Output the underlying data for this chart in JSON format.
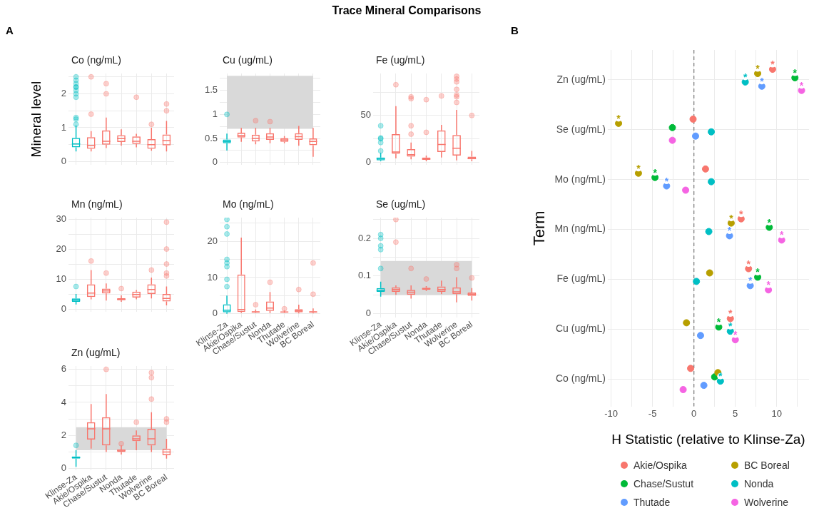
{
  "chart_data": [
    {
      "type": "box",
      "title": "Co (ng/mL)",
      "ylabel": "Mineral level",
      "annotations": [
        "Trace Mineral Comparisons",
        "A"
      ],
      "categories": [
        null,
        null,
        null,
        null,
        null,
        null,
        null
      ],
      "colors": [
        "#00bfc4",
        "#f8766d",
        "#f8766d",
        "#f8766d",
        "#f8766d",
        "#f8766d",
        "#f8766d"
      ],
      "boxes": [
        {
          "low": 0.3,
          "q1": 0.42,
          "median": 0.52,
          "q3": 0.7,
          "high": 1.07,
          "outliers": [
            2.5,
            2.4,
            2.3,
            2.2,
            2.2,
            2.1,
            2.0,
            1.9,
            1.3,
            1.25,
            1.1
          ]
        },
        {
          "low": 0.3,
          "q1": 0.38,
          "median": 0.48,
          "q3": 0.72,
          "high": 0.9,
          "outliers": [
            2.5,
            1.4
          ]
        },
        {
          "low": 0.4,
          "q1": 0.5,
          "median": 0.6,
          "q3": 0.92,
          "high": 1.3,
          "outliers": [
            2.3,
            2.0
          ]
        },
        {
          "low": 0.47,
          "q1": 0.58,
          "median": 0.68,
          "q3": 0.78,
          "high": 0.95
        },
        {
          "low": 0.42,
          "q1": 0.52,
          "median": 0.6,
          "q3": 0.74,
          "high": 0.82,
          "outliers": [
            1.9
          ]
        },
        {
          "low": 0.32,
          "q1": 0.38,
          "median": 0.5,
          "q3": 0.66,
          "high": 1.0,
          "outliers": [
            1.1
          ]
        },
        {
          "low": 0.3,
          "q1": 0.48,
          "median": 0.62,
          "q3": 0.8,
          "high": 1.2,
          "outliers": [
            1.7,
            1.5
          ]
        }
      ],
      "ylim": [
        -0.1,
        2.6
      ],
      "yticks": [
        0,
        {
          "value": 0.5,
          "label": null
        },
        1,
        {
          "value": 1.5,
          "label": null
        },
        2,
        {
          "value": 2.5,
          "label": null
        }
      ],
      "grid": true,
      "tick_labels": "y"
    },
    {
      "type": "box",
      "title": "Cu (ug/mL)",
      "categories": [
        null,
        null,
        null,
        null,
        null,
        null,
        null
      ],
      "colors": [
        "#00bfc4",
        "#f8766d",
        "#f8766d",
        "#f8766d",
        "#f8766d",
        "#f8766d",
        "#f8766d"
      ],
      "boxes": [
        {
          "low": 0.25,
          "q1": 0.4,
          "median": 0.44,
          "q3": 0.48,
          "high": 0.6,
          "outliers": [
            1.0
          ]
        },
        {
          "low": 0.43,
          "q1": 0.52,
          "median": 0.56,
          "q3": 0.62,
          "high": 0.72
        },
        {
          "low": 0.38,
          "q1": 0.44,
          "median": 0.5,
          "q3": 0.58,
          "high": 0.72,
          "outliers": [
            0.87
          ]
        },
        {
          "low": 0.4,
          "q1": 0.47,
          "median": 0.53,
          "q3": 0.61,
          "high": 0.72,
          "outliers": [
            0.85
          ]
        },
        {
          "low": 0.4,
          "q1": 0.43,
          "median": 0.47,
          "q3": 0.51,
          "high": 0.55
        },
        {
          "low": 0.35,
          "q1": 0.47,
          "median": 0.54,
          "q3": 0.61,
          "high": 0.76
        },
        {
          "low": 0.12,
          "q1": 0.36,
          "median": 0.44,
          "q3": 0.5,
          "high": 0.72
        }
      ],
      "bands": [
        {
          "axis": "y",
          "from": 0.7,
          "to": 1.8,
          "color": "#d9d9d9"
        }
      ],
      "ylim": [
        -0.05,
        1.85
      ],
      "yticks": [
        0,
        {
          "value": 0.25,
          "label": null
        },
        0.5,
        {
          "value": 0.75,
          "label": null
        },
        1,
        {
          "value": 1.25,
          "label": null
        },
        1.5,
        {
          "value": 1.75,
          "label": null
        }
      ],
      "grid": true,
      "tick_labels": "y"
    },
    {
      "type": "box",
      "title": "Fe (ug/mL)",
      "categories": [
        null,
        null,
        null,
        null,
        null,
        null,
        null
      ],
      "colors": [
        "#00bfc4",
        "#f8766d",
        "#f8766d",
        "#f8766d",
        "#f8766d",
        "#f8766d",
        "#f8766d"
      ],
      "boxes": [
        {
          "low": 1,
          "q1": 2,
          "median": 4,
          "q3": 5,
          "high": 10,
          "outliers": [
            39,
            26,
            25,
            21,
            12
          ]
        },
        {
          "low": 4,
          "q1": 9,
          "median": 11,
          "q3": 30,
          "high": 60,
          "outliers": [
            83
          ]
        },
        {
          "low": 3,
          "q1": 6,
          "median": 8,
          "q3": 14,
          "high": 21,
          "outliers": [
            70,
            68,
            39,
            30
          ]
        },
        {
          "low": 1,
          "q1": 2.5,
          "median": 3.5,
          "q3": 5,
          "high": 7,
          "outliers": [
            67,
            32
          ]
        },
        {
          "low": 5,
          "q1": 11,
          "median": 19,
          "q3": 34,
          "high": 40,
          "outliers": [
            71
          ]
        },
        {
          "low": 2,
          "q1": 7,
          "median": 15,
          "q3": 29,
          "high": 56,
          "outliers": [
            92,
            89,
            86,
            78,
            72,
            70,
            64
          ]
        },
        {
          "low": 1,
          "q1": 3,
          "median": 4,
          "q3": 6,
          "high": 12,
          "outliers": [
            50
          ]
        }
      ],
      "ylim": [
        -3,
        95
      ],
      "yticks": [
        0,
        {
          "value": 25,
          "label": null
        },
        50,
        {
          "value": 75,
          "label": null
        }
      ],
      "grid": true,
      "tick_labels": "y"
    },
    {
      "type": "box",
      "title": "Mn (ng/mL)",
      "categories": [
        null,
        null,
        null,
        null,
        null,
        null,
        null
      ],
      "colors": [
        "#00bfc4",
        "#f8766d",
        "#f8766d",
        "#f8766d",
        "#f8766d",
        "#f8766d",
        "#f8766d"
      ],
      "boxes": [
        {
          "low": 1.5,
          "q1": 2.4,
          "median": 3,
          "q3": 3.5,
          "high": 5,
          "outliers": [
            7.5
          ]
        },
        {
          "low": 3.2,
          "q1": 4,
          "median": 5.3,
          "q3": 8.2,
          "high": 13,
          "outliers": [
            16
          ]
        },
        {
          "low": 2.8,
          "q1": 5.2,
          "median": 6,
          "q3": 6.8,
          "high": 8.5,
          "outliers": [
            12
          ]
        },
        {
          "low": 2.4,
          "q1": 2.9,
          "median": 3.2,
          "q3": 3.6,
          "high": 4.5,
          "outliers": [
            6.8
          ]
        },
        {
          "low": 3.2,
          "q1": 3.8,
          "median": 4.8,
          "q3": 5.8,
          "high": 6.3
        },
        {
          "low": 3.5,
          "q1": 5,
          "median": 6.5,
          "q3": 8.2,
          "high": 10.5,
          "outliers": [
            13
          ]
        },
        {
          "low": 1.2,
          "q1": 2.5,
          "median": 3.5,
          "q3": 5,
          "high": 7.5,
          "outliers": [
            29,
            20,
            15,
            12,
            11
          ]
        }
      ],
      "ylim": [
        -1,
        30.5
      ],
      "yticks": [
        0,
        {
          "value": 5,
          "label": null
        },
        10,
        {
          "value": 15,
          "label": null
        },
        20,
        {
          "value": 25,
          "label": null
        },
        30
      ],
      "grid": true,
      "tick_labels": "y"
    },
    {
      "type": "box",
      "title": "Mo (ng/mL)",
      "categories": [
        "Klinse-Za",
        "Akie/Ospika",
        "Chase/Sustut",
        "Nonda",
        "Thutade",
        "Wolverine",
        "BC Boreal"
      ],
      "colors": [
        "#00bfc4",
        "#f8766d",
        "#f8766d",
        "#f8766d",
        "#f8766d",
        "#f8766d",
        "#f8766d"
      ],
      "boxes": [
        {
          "low": 0,
          "q1": 0.4,
          "median": 1,
          "q3": 2.6,
          "high": 5,
          "outliers": [
            26,
            24,
            22,
            15,
            14,
            13,
            9.5,
            7.5
          ]
        },
        {
          "low": 0.2,
          "q1": 0.5,
          "median": 1.2,
          "q3": 10.8,
          "high": 21
        },
        {
          "low": 0.2,
          "q1": 0.3,
          "median": 0.5,
          "q3": 0.7,
          "high": 1.2,
          "outliers": [
            2.5
          ]
        },
        {
          "low": 0.2,
          "q1": 0.8,
          "median": 1.6,
          "q3": 3.4,
          "high": 6,
          "outliers": [
            8.7
          ]
        },
        {
          "low": 0.2,
          "q1": 0.3,
          "median": 0.5,
          "q3": 0.6,
          "high": 0.9,
          "outliers": [
            1.4
          ]
        },
        {
          "low": 0.1,
          "q1": 0.4,
          "median": 0.8,
          "q3": 1.3,
          "high": 2.5,
          "outliers": [
            6.7
          ]
        },
        {
          "low": 0.1,
          "q1": 0.3,
          "median": 0.5,
          "q3": 0.7,
          "high": 1.5,
          "outliers": [
            14,
            5.4
          ]
        }
      ],
      "ylim": [
        -1,
        26.5
      ],
      "yticks": [
        0,
        {
          "value": 5,
          "label": null
        },
        10,
        {
          "value": 15,
          "label": null
        },
        20,
        {
          "value": 25,
          "label": null
        }
      ],
      "grid": true
    },
    {
      "type": "box",
      "title": "Se (ug/mL)",
      "categories": [
        "Klinse-Za",
        "Akie/Ospika",
        "Chase/Sustut",
        "Nonda",
        "Thutade",
        "Wolverine",
        "BC Boreal"
      ],
      "colors": [
        "#00bfc4",
        "#f8766d",
        "#f8766d",
        "#f8766d",
        "#f8766d",
        "#f8766d",
        "#f8766d"
      ],
      "boxes": [
        {
          "low": 0.045,
          "q1": 0.058,
          "median": 0.062,
          "q3": 0.068,
          "high": 0.085,
          "outliers": [
            0.21,
            0.2,
            0.18,
            0.17,
            0.12
          ]
        },
        {
          "low": 0.05,
          "q1": 0.058,
          "median": 0.064,
          "q3": 0.07,
          "high": 0.075,
          "outliers": [
            0.25,
            0.19
          ]
        },
        {
          "low": 0.04,
          "q1": 0.05,
          "median": 0.057,
          "q3": 0.063,
          "high": 0.075,
          "outliers": [
            0.12
          ]
        },
        {
          "low": 0.06,
          "q1": 0.063,
          "median": 0.066,
          "q3": 0.069,
          "high": 0.073,
          "outliers": [
            0.092
          ]
        },
        {
          "low": 0.052,
          "q1": 0.058,
          "median": 0.064,
          "q3": 0.072,
          "high": 0.088
        },
        {
          "low": 0.03,
          "q1": 0.052,
          "median": 0.058,
          "q3": 0.07,
          "high": 0.097,
          "outliers": [
            0.13,
            0.12
          ]
        },
        {
          "low": 0.035,
          "q1": 0.047,
          "median": 0.052,
          "q3": 0.056,
          "high": 0.068,
          "outliers": [
            0.095
          ]
        }
      ],
      "bands": [
        {
          "axis": "y",
          "from": 0.05,
          "to": 0.14,
          "color": "#d9d9d9"
        }
      ],
      "ylim": [
        -0.01,
        0.255
      ],
      "yticks": [
        0,
        {
          "value": 0.05,
          "label": null
        },
        0.1,
        {
          "value": 0.15,
          "label": null
        },
        0.2,
        {
          "value": 0.25,
          "label": null
        }
      ],
      "grid": true
    },
    {
      "type": "box",
      "title": "Zn (ug/mL)",
      "categories": [
        "Klinse-Za",
        "Akie/Ospika",
        "Chase/Sustut",
        "Nonda",
        "Thutade",
        "Wolverine",
        "BC Boreal"
      ],
      "colors": [
        "#00bfc4",
        "#f8766d",
        "#f8766d",
        "#f8766d",
        "#f8766d",
        "#f8766d",
        "#f8766d"
      ],
      "boxes": [
        {
          "low": 0.1,
          "q1": 0.6,
          "median": 0.66,
          "q3": 0.73,
          "high": 1.1,
          "outliers": [
            1.4
          ]
        },
        {
          "low": 1.2,
          "q1": 1.75,
          "median": 2.4,
          "q3": 2.8,
          "high": 3.9
        },
        {
          "low": 1.0,
          "q1": 1.4,
          "median": 2.4,
          "q3": 3.1,
          "high": 4.5,
          "outliers": [
            6
          ]
        },
        {
          "low": 0.85,
          "q1": 1.0,
          "median": 1.1,
          "q3": 1.15,
          "high": 1.4,
          "outliers": [
            1.5
          ]
        },
        {
          "low": 1.1,
          "q1": 1.65,
          "median": 1.8,
          "q3": 2.0,
          "high": 2.3,
          "outliers": [
            2.8
          ]
        },
        {
          "low": 1.0,
          "q1": 1.4,
          "median": 1.8,
          "q3": 2.4,
          "high": 3.4,
          "outliers": [
            5.8,
            5.5,
            4.2
          ]
        },
        {
          "low": 0.6,
          "q1": 0.8,
          "median": 1.0,
          "q3": 1.2,
          "high": 1.8,
          "outliers": [
            3.0,
            2.8
          ]
        }
      ],
      "bands": [
        {
          "axis": "y",
          "from": 1.1,
          "to": 2.5,
          "color": "#d9d9d9"
        }
      ],
      "ylim": [
        -0.1,
        6.2
      ],
      "yticks": [
        0,
        {
          "value": 1,
          "label": null
        },
        2,
        {
          "value": 3,
          "label": null
        },
        4,
        {
          "value": 5,
          "label": null
        },
        6
      ],
      "grid": true
    },
    {
      "type": "scatter",
      "orientation": "horizontal",
      "annotations": [
        "B"
      ],
      "xlabel": "H Statistic (relative to Klinse-Za)",
      "ylabel": "Term",
      "categories": [
        "Zn (ug/mL)",
        "Se (ug/mL)",
        "Mo (ng/mL)",
        "Mn (ng/mL)",
        "Fe (ug/mL)",
        "Cu (ug/mL)",
        "Co (ng/mL)"
      ],
      "series": [
        {
          "name": "Akie/Ospika",
          "color": "#f8766d",
          "values": [
            9.5,
            -0.1,
            1.4,
            5.7,
            6.6,
            4.4,
            -0.4
          ],
          "value_labels": [
            "*",
            null,
            null,
            "*",
            "*",
            "*",
            null
          ]
        },
        {
          "name": "BC Boreal",
          "color": "#b79f00",
          "values": [
            7.7,
            -9.1,
            -6.7,
            4.5,
            1.9,
            -0.9,
            2.9
          ],
          "value_labels": [
            "*",
            "*",
            "*",
            "*",
            null,
            null,
            null
          ]
        },
        {
          "name": "Chase/Sustut",
          "color": "#00ba38",
          "values": [
            12.2,
            -2.6,
            -4.7,
            9.1,
            7.7,
            3.0,
            2.5
          ],
          "value_labels": [
            "*",
            null,
            "*",
            "*",
            "*",
            "*",
            null
          ]
        },
        {
          "name": "Nonda",
          "color": "#00bfc4",
          "values": [
            6.2,
            2.1,
            2.1,
            1.8,
            0.3,
            4.4,
            3.2
          ],
          "value_labels": [
            "*",
            null,
            null,
            null,
            null,
            "*",
            "*"
          ]
        },
        {
          "name": "Thutade",
          "color": "#619cff",
          "values": [
            8.2,
            0.2,
            -3.3,
            4.3,
            6.8,
            0.8,
            1.2
          ],
          "value_labels": [
            "*",
            null,
            "*",
            "*",
            "*",
            null,
            null
          ]
        },
        {
          "name": "Wolverine",
          "color": "#f564e3",
          "values": [
            13.0,
            -2.6,
            -1.0,
            10.6,
            9.0,
            5.0,
            -1.3
          ],
          "value_labels": [
            "*",
            null,
            null,
            "*",
            "*",
            "*",
            null
          ]
        }
      ],
      "ref_lines": [
        {
          "axis": "x",
          "value": 0,
          "color": "#7f7f7f",
          "line_style": "dashed"
        }
      ],
      "xlim": [
        -10.4,
        13.9
      ],
      "xticks": [
        -10,
        {
          "value": -7.5,
          "label": null
        },
        -5,
        {
          "value": -2.5,
          "label": null
        },
        0,
        {
          "value": 2.5,
          "label": null
        },
        5,
        {
          "value": 7.5,
          "label": null
        },
        10,
        {
          "value": 12.5,
          "label": null
        }
      ],
      "grid": true,
      "legend": "bottom",
      "marker": "circle"
    }
  ]
}
